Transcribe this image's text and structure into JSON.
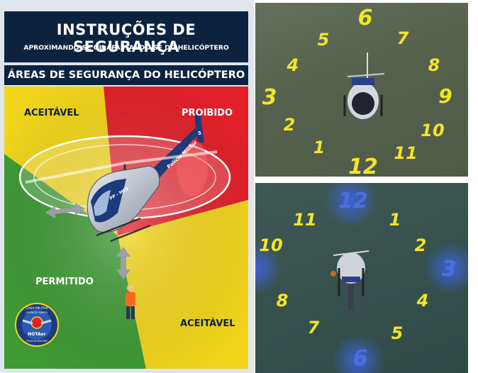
{
  "infographic": {
    "title": "INSTRUÇÕES DE SEGURANÇA",
    "subtitle": "APROXIMANDO-SE OU AFASTANDO-SE DO HELICÓPTERO",
    "section_title": "ÁREAS DE SEGURANÇA DO HELICÓPTERO",
    "zones": {
      "top_left": "ACEITÁVEL",
      "top_right": "PROIBIDO",
      "bottom_left": "PERMITIDO",
      "bottom_right": "ACEITÁVEL"
    },
    "zone_colors": {
      "acceptable": "#f2d51c",
      "forbidden": "#e2202a",
      "permitted": "#3f9a35"
    },
    "helicopter_markings": {
      "registration": "PP - MES",
      "tail_text": "Polícia Militar",
      "tail_number": "5"
    },
    "seal": {
      "top_text": "CASA MILITAR",
      "upper_text": "ESPÍRITO SANTO",
      "center_text": "NOTAer",
      "bottom_text": "POLÍCIA MILITAR"
    }
  },
  "photo_top": {
    "numbers": [
      "6",
      "7",
      "8",
      "9",
      "10",
      "11",
      "12",
      "1",
      "2",
      "3",
      "4",
      "5"
    ],
    "number_color": "#f1e52a"
  },
  "photo_bottom": {
    "numbers": [
      "12",
      "1",
      "2",
      "3",
      "4",
      "5",
      "6",
      "7",
      "8",
      "10",
      "11"
    ],
    "number_color": "#f1e52a",
    "highlight_color": "#3d63d8"
  }
}
